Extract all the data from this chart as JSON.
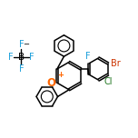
{
  "bg_color": "#ffffff",
  "line_color": "#000000",
  "bond_width": 1.1,
  "font_size_label": 7.0,
  "O_color": "#ff6600",
  "F_color": "#1a9fdb",
  "Br_color": "#cc3300",
  "Cl_color": "#227722",
  "figsize": [
    1.52,
    1.52
  ],
  "dpi": 100,
  "xlim": [
    -5.5,
    5.5
  ],
  "ylim": [
    -5.0,
    5.5
  ]
}
